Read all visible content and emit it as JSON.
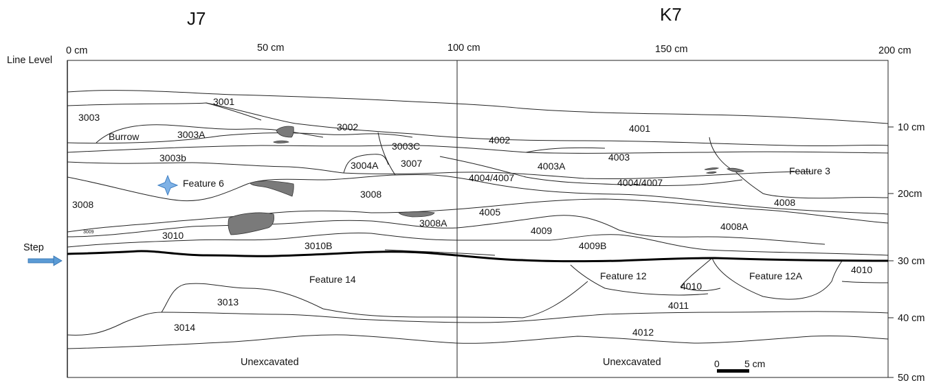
{
  "units": {
    "left": "J7",
    "right": "K7"
  },
  "top_scale": [
    "0 cm",
    "50 cm",
    "100 cm",
    "150 cm",
    "200 cm"
  ],
  "right_scale": [
    "10 cm",
    "20cm",
    "30 cm",
    "40 cm",
    "50 cm"
  ],
  "line_level": "Line Level",
  "step": "Step",
  "scale_bar": {
    "start": "0",
    "end": "5 cm"
  },
  "layers": {
    "l3001": "3001",
    "l3003": "3003",
    "burrow": "Burrow",
    "l3003a": "3003A",
    "l3002": "3002",
    "l3003c": "3003C",
    "l3003b": "3003b",
    "l3004a": "3004A",
    "l3007": "3007",
    "feature6": "Feature 6",
    "l3008_left": "3008",
    "l3008_mid": "3008",
    "l3009": "3009",
    "l3010": "3010",
    "l3008a": "3008A",
    "l3010b": "3010B",
    "l4001": "4001",
    "l4002": "4002",
    "l4003a": "4003A",
    "l4003": "4003",
    "feature3": "Feature 3",
    "l4004_4007_a": "4004/4007",
    "l4004_4007_b": "4004/4007",
    "l4008": "4008",
    "l4005": "4005",
    "l4009": "4009",
    "l4008a": "4008A",
    "l4009b": "4009B",
    "feature14": "Feature 14",
    "feature12": "Feature 12",
    "l4010_a": "4010",
    "feature12a": "Feature 12A",
    "l4010_b": "4010",
    "l3013": "3013",
    "l4011": "4011",
    "l3014": "3014",
    "l4012": "4012",
    "unexcavated_left": "Unexcavated",
    "unexcavated_right": "Unexcavated"
  }
}
